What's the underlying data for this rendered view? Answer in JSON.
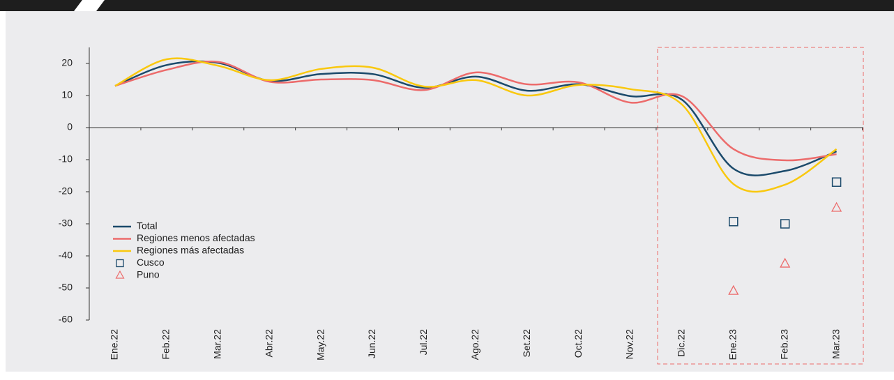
{
  "chart_data": {
    "type": "line",
    "categories": [
      "Ene.22",
      "Feb.22",
      "Mar.22",
      "Abr.22",
      "May.22",
      "Jun.22",
      "Jul.22",
      "Ago.22",
      "Set.22",
      "Oct.22",
      "Nov.22",
      "Dic.22",
      "Ene.23",
      "Feb.23",
      "Mar.23"
    ],
    "series": [
      {
        "name": "Total",
        "color": "#1b4a6b",
        "kind": "line",
        "values": [
          13,
          19.5,
          20.2,
          14.6,
          16.7,
          16.7,
          12.4,
          15.9,
          11.5,
          13.5,
          9.8,
          8.7,
          -12.8,
          -13.5,
          -7.4
        ]
      },
      {
        "name": "Regiones menos afectadas",
        "color": "#ec6b6b",
        "kind": "line",
        "values": [
          13,
          18,
          20.5,
          14.3,
          15,
          14.8,
          11.7,
          17.2,
          13.5,
          14.1,
          7.8,
          9.8,
          -6.7,
          -10.2,
          -8.3
        ]
      },
      {
        "name": "Regiones más afectadas",
        "color": "#f9c80e",
        "kind": "line",
        "values": [
          13,
          21.3,
          19.3,
          14.8,
          18.3,
          18.7,
          12.8,
          14.8,
          10,
          13.3,
          12,
          7.2,
          -17.6,
          -17.8,
          -6.7
        ]
      },
      {
        "name": "Cusco",
        "color": "#1b4a6b",
        "kind": "square",
        "values": [
          null,
          null,
          null,
          null,
          null,
          null,
          null,
          null,
          null,
          null,
          null,
          null,
          -29.3,
          -30,
          -17
        ]
      },
      {
        "name": "Puno",
        "color": "#ec6b6b",
        "kind": "triangle",
        "values": [
          null,
          null,
          null,
          null,
          null,
          null,
          null,
          null,
          null,
          null,
          null,
          null,
          -50.9,
          -42.4,
          -25
        ]
      }
    ],
    "ylim": [
      -60,
      25
    ],
    "yticks": [
      -60,
      -50,
      -40,
      -30,
      -20,
      -10,
      0,
      10,
      20
    ],
    "grid": false
  }
}
